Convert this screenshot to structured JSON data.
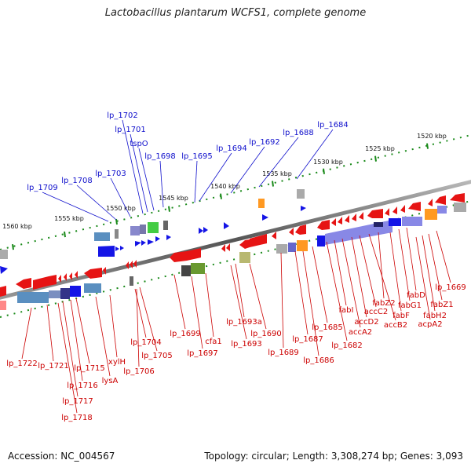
{
  "title": "Lactobacillus plantarum WCFS1, complete genome",
  "footer": {
    "accession": "Accession: NC_004567",
    "topology": "Topology: circular; Length: 3,308,274 bp; Genes: 3,093"
  },
  "colors": {
    "forward_label": "#1010cc",
    "reverse_label": "#cc0000",
    "backbone": "#808080",
    "tick": "#1a8a1a",
    "kbp_label": "#111111"
  },
  "kbp_ticks": [
    "1520 kbp",
    "1525 kbp",
    "1530 kbp",
    "1535 kbp",
    "1540 kbp",
    "1545 kbp",
    "1550 kbp",
    "1555 kbp",
    "1560 kbp"
  ],
  "forward_labels": [
    "lp_1684",
    "lp_1688",
    "lp_1692",
    "lp_1694",
    "lp_1695",
    "lp_1698",
    "tspO",
    "lp_1701",
    "lp_1702",
    "lp_1703",
    "lp_1708",
    "lp_1709"
  ],
  "reverse_labels": [
    "lp_1669",
    "fabZ1",
    "fabH2",
    "acpA2",
    "fabD",
    "fabG1",
    "fabF",
    "fabZ2",
    "accB2",
    "accC2",
    "accD2",
    "accA2",
    "fabI",
    "lp_1682",
    "lp_1685",
    "lp_1686",
    "lp_1687",
    "lp_1689",
    "lp_1690",
    "lp_1693a",
    "lp_1693",
    "cfa1",
    "lp_1697",
    "lp_1699",
    "lp_1704",
    "lp_1705",
    "lp_1706",
    "xylH",
    "lysA",
    "lp_1715",
    "lp_1716",
    "lp_1717",
    "lp_1718",
    "lp_1721",
    "lp_1722"
  ]
}
